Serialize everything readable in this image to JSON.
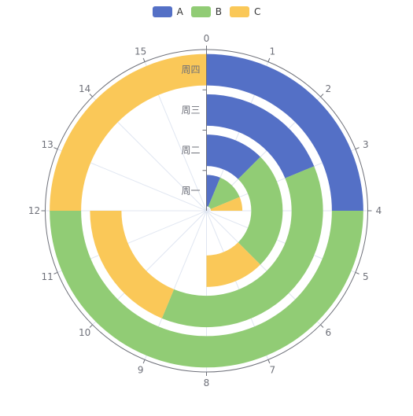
{
  "chart_data": {
    "type": "polar-stacked-bar",
    "legend": {
      "position": "top-center",
      "items": [
        {
          "name": "A",
          "color": "#5470c6"
        },
        {
          "name": "B",
          "color": "#91cc75"
        },
        {
          "name": "C",
          "color": "#fac858"
        }
      ]
    },
    "angle_axis": {
      "min": 0,
      "max": 16,
      "ticks": [
        "0",
        "1",
        "2",
        "3",
        "4",
        "5",
        "6",
        "7",
        "8",
        "9",
        "10",
        "11",
        "12",
        "13",
        "14",
        "15"
      ]
    },
    "radius_axis": {
      "categories": [
        "周一",
        "周二",
        "周三",
        "周四"
      ]
    },
    "series": [
      {
        "name": "A",
        "color": "#5470c6",
        "values": [
          1,
          2,
          3,
          4
        ]
      },
      {
        "name": "B",
        "color": "#91cc75",
        "values": [
          2,
          4,
          6,
          8
        ]
      },
      {
        "name": "C",
        "color": "#fac858",
        "values": [
          1,
          2,
          3,
          4
        ]
      }
    ]
  }
}
